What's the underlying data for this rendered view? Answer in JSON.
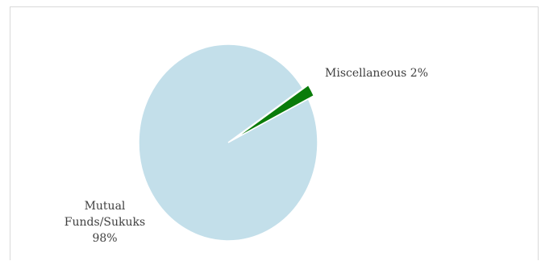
{
  "chart_data": {
    "type": "pie",
    "slices": [
      {
        "name": "Mutual Funds/Sukuks",
        "value": 98,
        "label": "Mutual Funds/Sukuks 98%",
        "color": "#c3dfea"
      },
      {
        "name": "Miscellaneous",
        "value": 2,
        "label": "Miscellaneous 2%",
        "color": "#0a7c0a"
      }
    ],
    "legend": "none",
    "title": ""
  },
  "labels": {
    "misc": "Miscellaneous 2%",
    "mutual_line1": "Mutual",
    "mutual_line2": "Funds/Sukuks",
    "mutual_line3": "98%"
  }
}
